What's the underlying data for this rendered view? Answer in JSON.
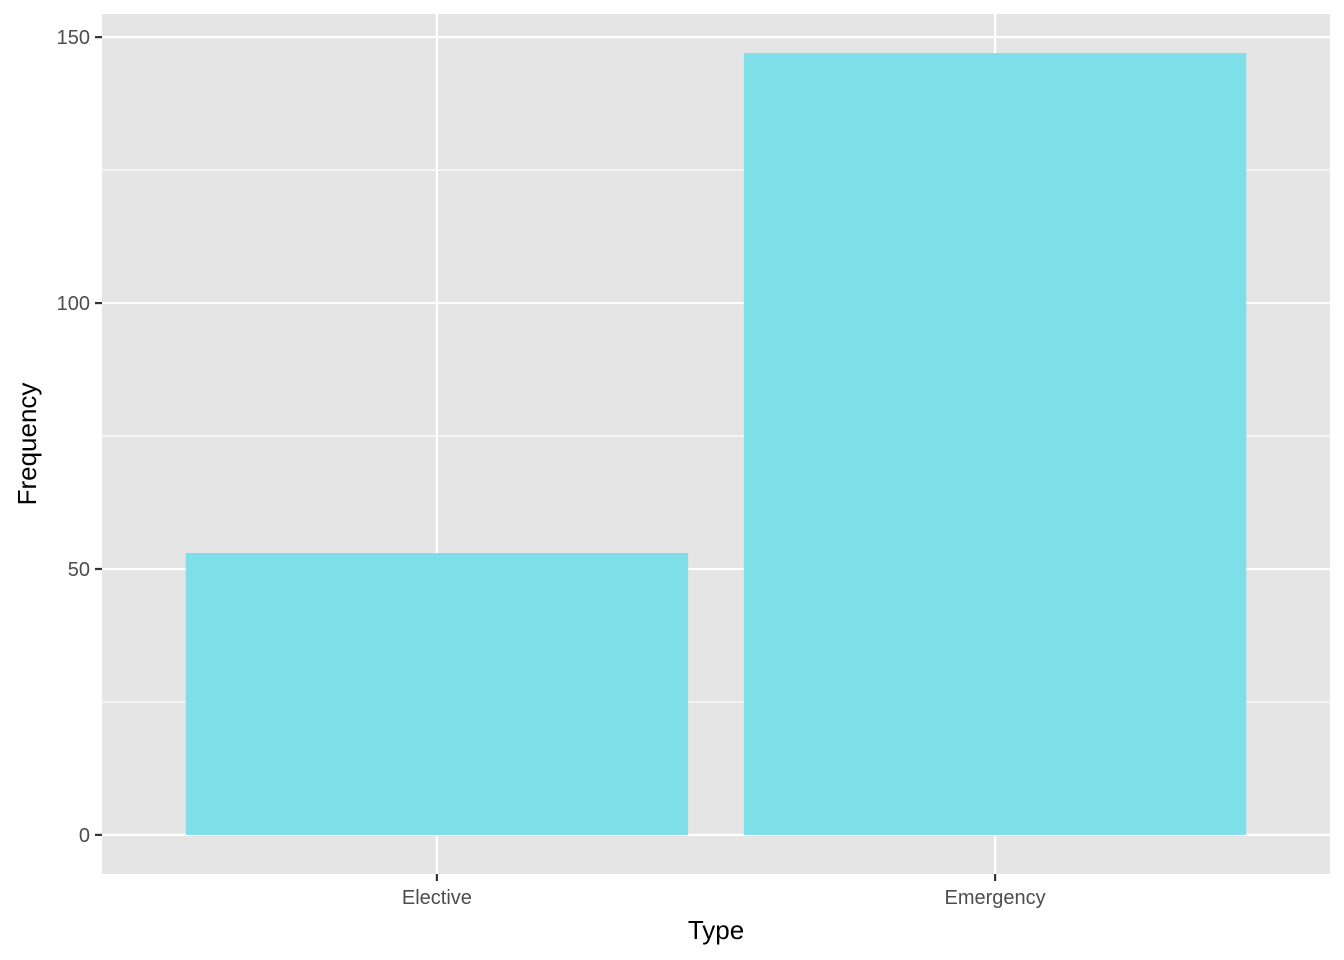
{
  "chart_data": {
    "type": "bar",
    "title": "",
    "xlabel": "Type",
    "ylabel": "Frequency",
    "categories": [
      "Elective",
      "Emergency"
    ],
    "values": [
      53,
      147
    ],
    "ylim": [
      -7.35,
      154.35
    ],
    "y_ticks": [
      0,
      50,
      100,
      150
    ],
    "y_minor_ticks": [
      25,
      75,
      125
    ],
    "grid": true,
    "legend": "none",
    "colors": {
      "bar_fill": "#7fdfe8",
      "panel_background": "#e5e5e5",
      "grid_line": "#ffffff",
      "tick_text": "#4d4d4d",
      "axis_title": "#000000"
    }
  }
}
